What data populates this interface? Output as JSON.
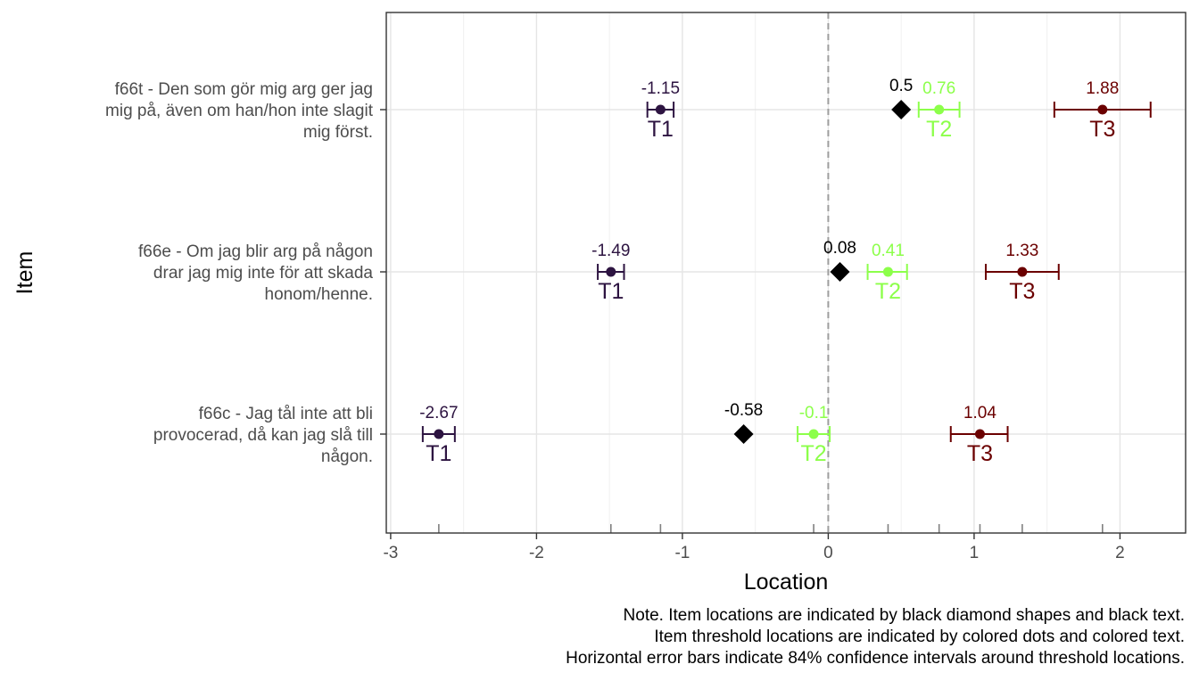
{
  "chart_data": {
    "type": "scatter",
    "xlabel": "Location",
    "ylabel": "Item",
    "xlim": [
      -3.03,
      2.45
    ],
    "xticks": [
      -3,
      -2,
      -1,
      0,
      1,
      2
    ],
    "xtick_labels": [
      "-3",
      "-2",
      "-1",
      "0",
      "1",
      "2"
    ],
    "grid": true,
    "reference_line_x": 0,
    "colors": {
      "item": "#000000",
      "T1": "#2d1441",
      "T2": "#8cff4a",
      "T3": "#6b0000",
      "grid": "#e5e5e5",
      "refline": "#9e9e9e"
    },
    "items": [
      {
        "label_lines": [
          "f66t - Den som gör mig arg ger jag",
          "mig på, även om han/hon inte slagit",
          "mig först."
        ],
        "location": 0.5,
        "location_label": "0.5",
        "thresholds": [
          {
            "name": "T1",
            "value": -1.15,
            "label": "-1.15",
            "ci": [
              -1.24,
              -1.06
            ]
          },
          {
            "name": "T2",
            "value": 0.76,
            "label": "0.76",
            "ci": [
              0.62,
              0.9
            ]
          },
          {
            "name": "T3",
            "value": 1.88,
            "label": "1.88",
            "ci": [
              1.55,
              2.21
            ]
          }
        ]
      },
      {
        "label_lines": [
          "f66e - Om jag blir arg på någon",
          "drar jag mig inte för att skada",
          "honom/henne."
        ],
        "location": 0.08,
        "location_label": "0.08",
        "thresholds": [
          {
            "name": "T1",
            "value": -1.49,
            "label": "-1.49",
            "ci": [
              -1.58,
              -1.4
            ]
          },
          {
            "name": "T2",
            "value": 0.41,
            "label": "0.41",
            "ci": [
              0.27,
              0.54
            ]
          },
          {
            "name": "T3",
            "value": 1.33,
            "label": "1.33",
            "ci": [
              1.08,
              1.58
            ]
          }
        ]
      },
      {
        "label_lines": [
          "f66c - Jag tål inte att bli",
          "provocerad, då kan jag slå till",
          "någon."
        ],
        "location": -0.58,
        "location_label": "-0.58",
        "thresholds": [
          {
            "name": "T1",
            "value": -2.67,
            "label": "-2.67",
            "ci": [
              -2.78,
              -2.56
            ]
          },
          {
            "name": "T2",
            "value": -0.1,
            "label": "-0.1",
            "ci": [
              -0.21,
              0.01
            ]
          },
          {
            "name": "T3",
            "value": 1.04,
            "label": "1.04",
            "ci": [
              0.84,
              1.23
            ]
          }
        ]
      }
    ],
    "rug_ticks": [
      -2.67,
      -1.49,
      -1.15,
      -0.1,
      0.41,
      0.76,
      1.04,
      1.33,
      1.88
    ]
  },
  "note": {
    "line1": "Note. Item locations are indicated by black diamond shapes and black text.",
    "line2": "Item threshold locations are indicated by colored dots and colored text.",
    "line3": "Horizontal error bars indicate 84% confidence intervals around threshold locations."
  }
}
